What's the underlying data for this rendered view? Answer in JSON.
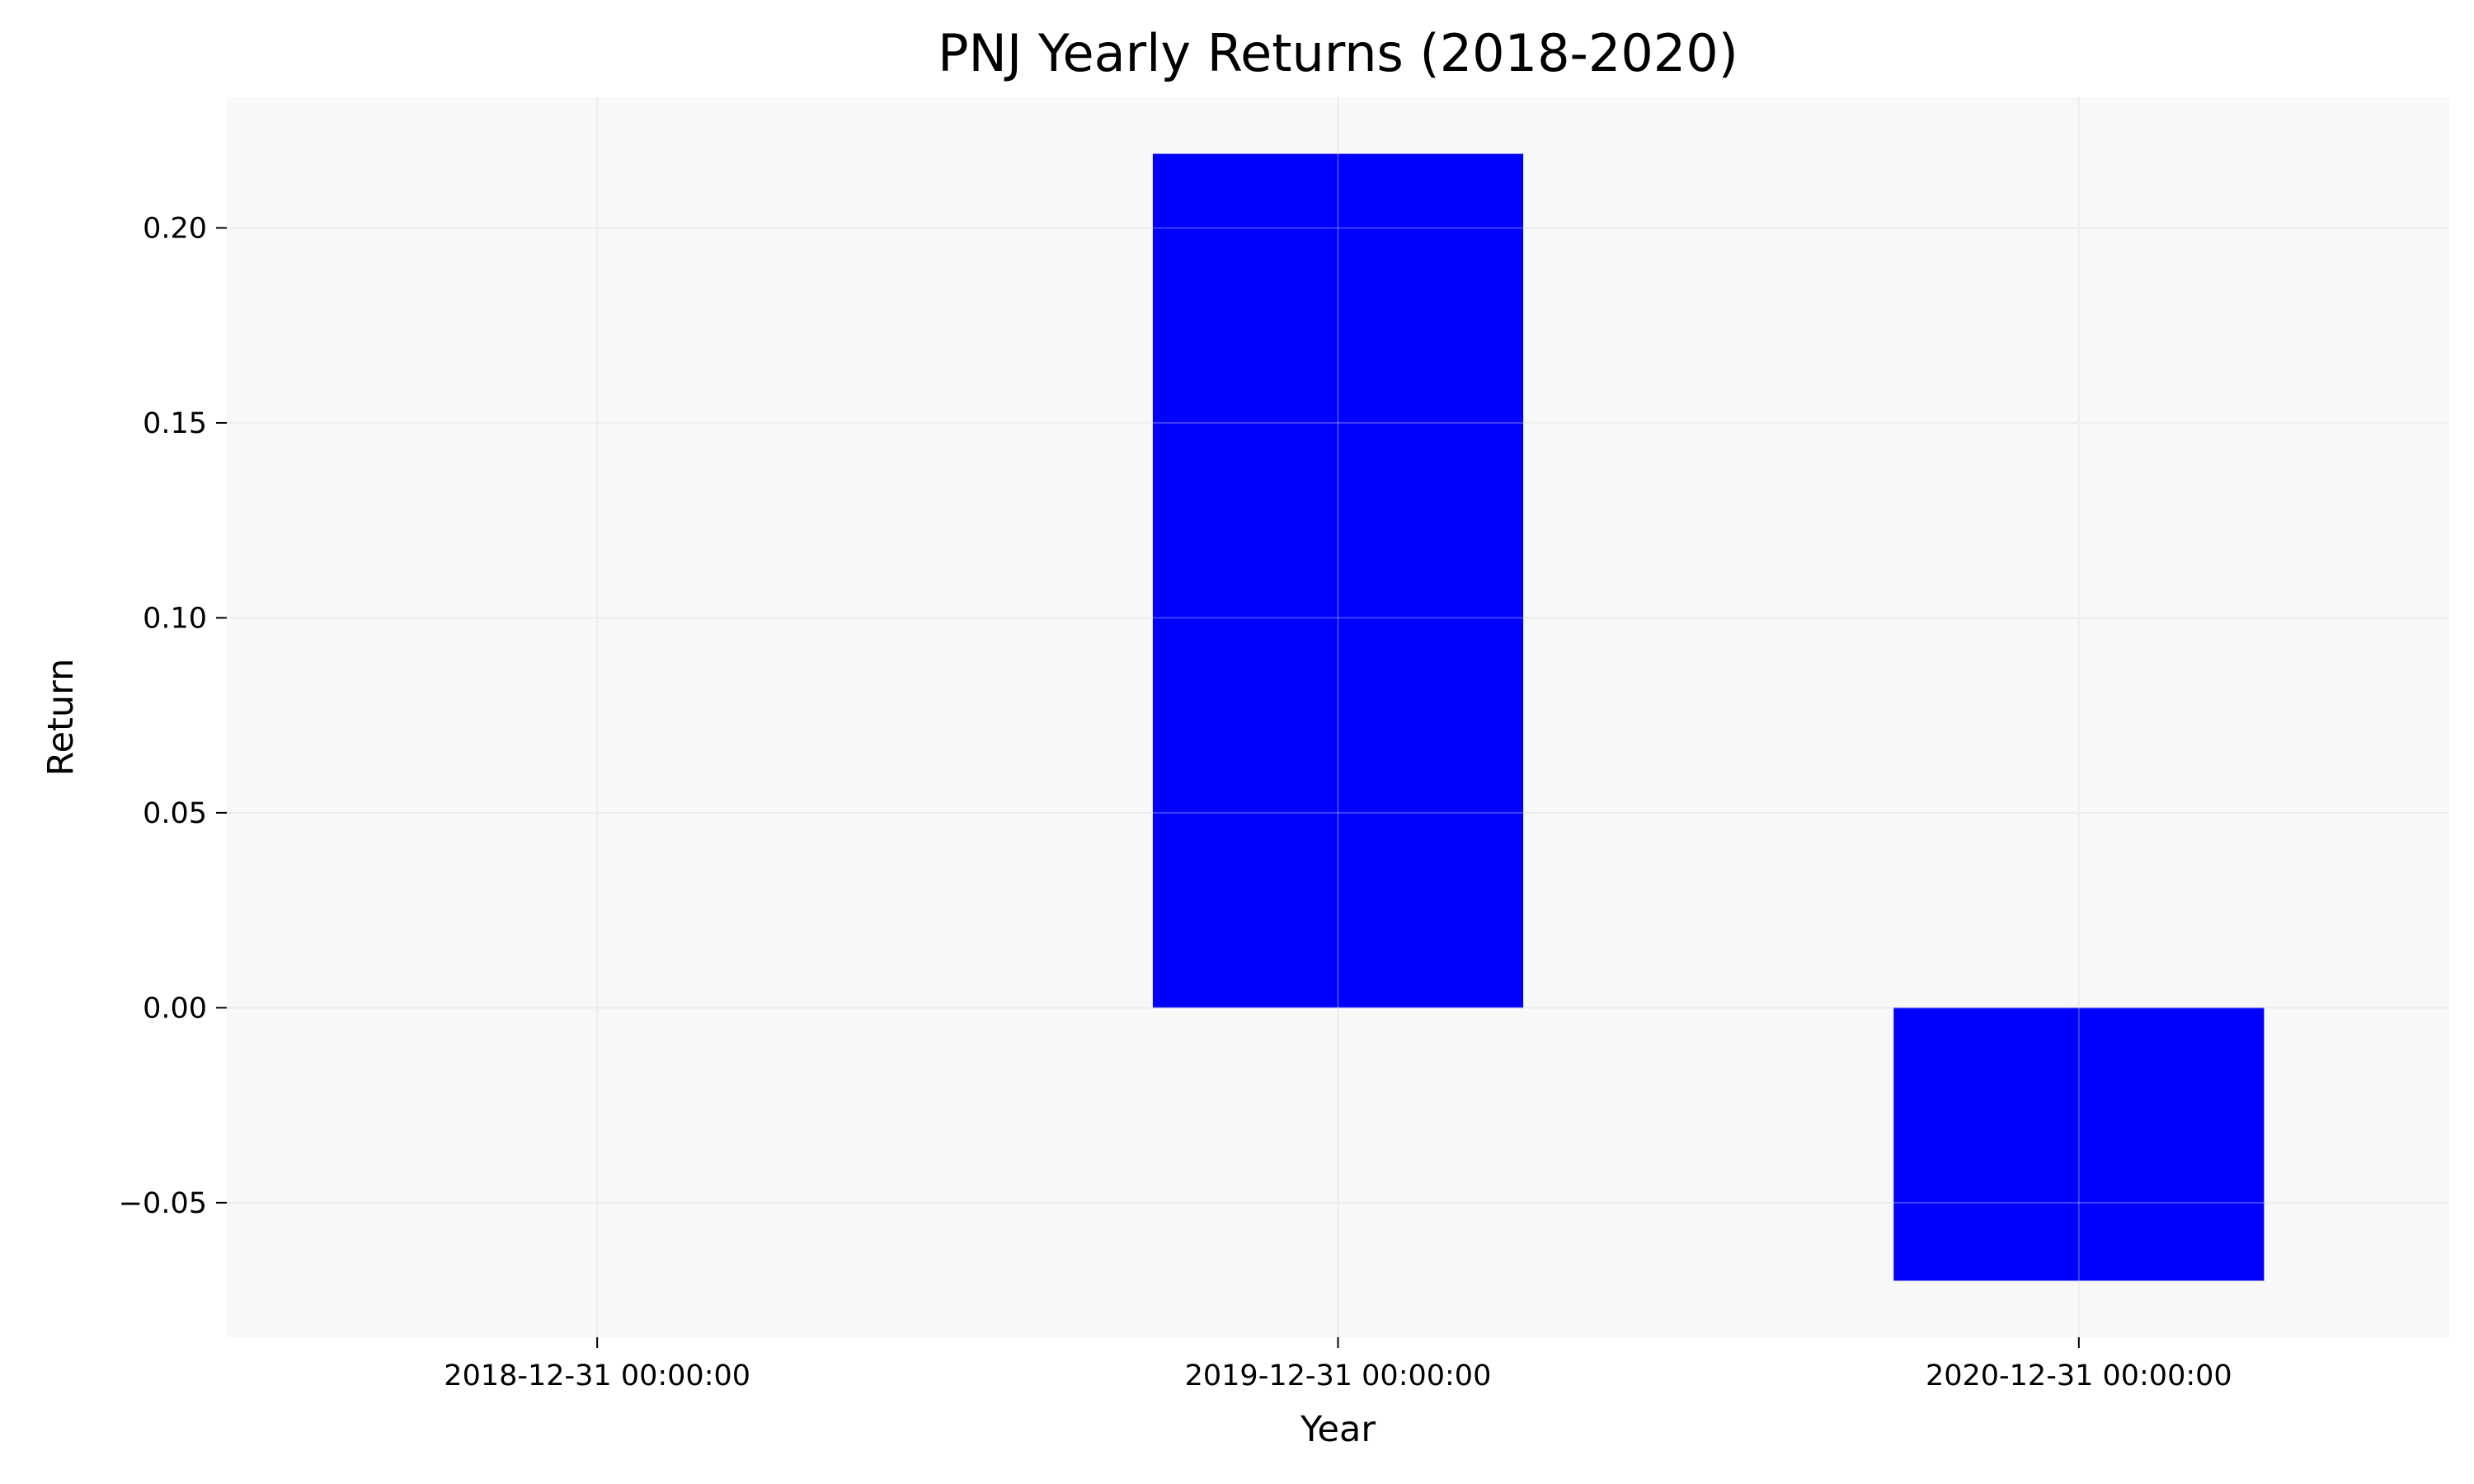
{
  "chart_data": {
    "type": "bar",
    "title": "PNJ Yearly Returns (2018-2020)",
    "xlabel": "Year",
    "ylabel": "Return",
    "categories": [
      "2018-12-31 00:00:00",
      "2019-12-31 00:00:00",
      "2020-12-31 00:00:00"
    ],
    "values": [
      0.0,
      0.219,
      -0.07
    ],
    "ylim": [
      -0.0845,
      0.2335
    ],
    "yticks": [
      -0.05,
      0.0,
      0.05,
      0.1,
      0.15,
      0.2
    ],
    "ytick_labels": [
      "−0.05",
      "0.00",
      "0.05",
      "0.10",
      "0.15",
      "0.20"
    ],
    "grid": true,
    "legend": "none",
    "colors": {
      "bar": "#0000ff",
      "plot_background": "#f8f8f8",
      "grid": "#e6e6e6",
      "figure_background": "#ffffff"
    }
  }
}
